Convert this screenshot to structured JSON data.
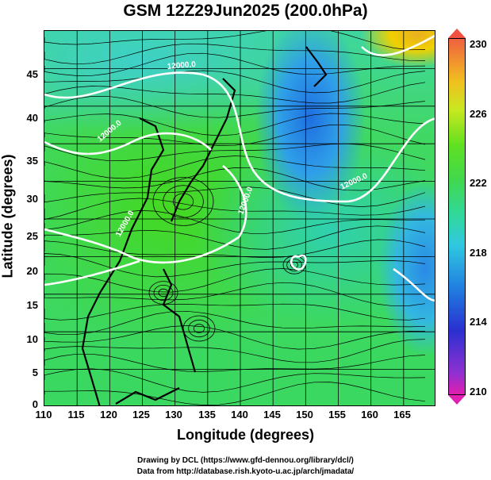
{
  "title": "GSM 12Z29Jun2025 (200.0hPa)",
  "axes": {
    "xlabel": "Longitude (degrees)",
    "ylabel": "Latitude  (degrees)",
    "xticks": [
      "110",
      "115",
      "120",
      "125",
      "130",
      "135",
      "140",
      "145",
      "150",
      "155",
      "160",
      "165"
    ],
    "yticks": [
      "0",
      "5",
      "10",
      "15",
      "20",
      "25",
      "30",
      "35",
      "40",
      "45"
    ],
    "xrange": [
      110,
      170
    ],
    "yrange": [
      0,
      50
    ]
  },
  "colorbar": {
    "labels": [
      "230",
      "226",
      "222",
      "218",
      "214",
      "210"
    ],
    "range": [
      210,
      230
    ]
  },
  "contours": {
    "labels": [
      "12000.0",
      "12000.0",
      "12000.0",
      "12000.0",
      "12000.0"
    ]
  },
  "credits": {
    "line1": "Drawing by DCL (https://www.gfd-dennou.org/library/dcl/)",
    "line2": "Data from http://database.rish.kyoto-u.ac.jp/arch/jmadata/"
  },
  "colors": {
    "contour": "#ffffff",
    "coast": "#000000",
    "streamline": "#000000"
  }
}
